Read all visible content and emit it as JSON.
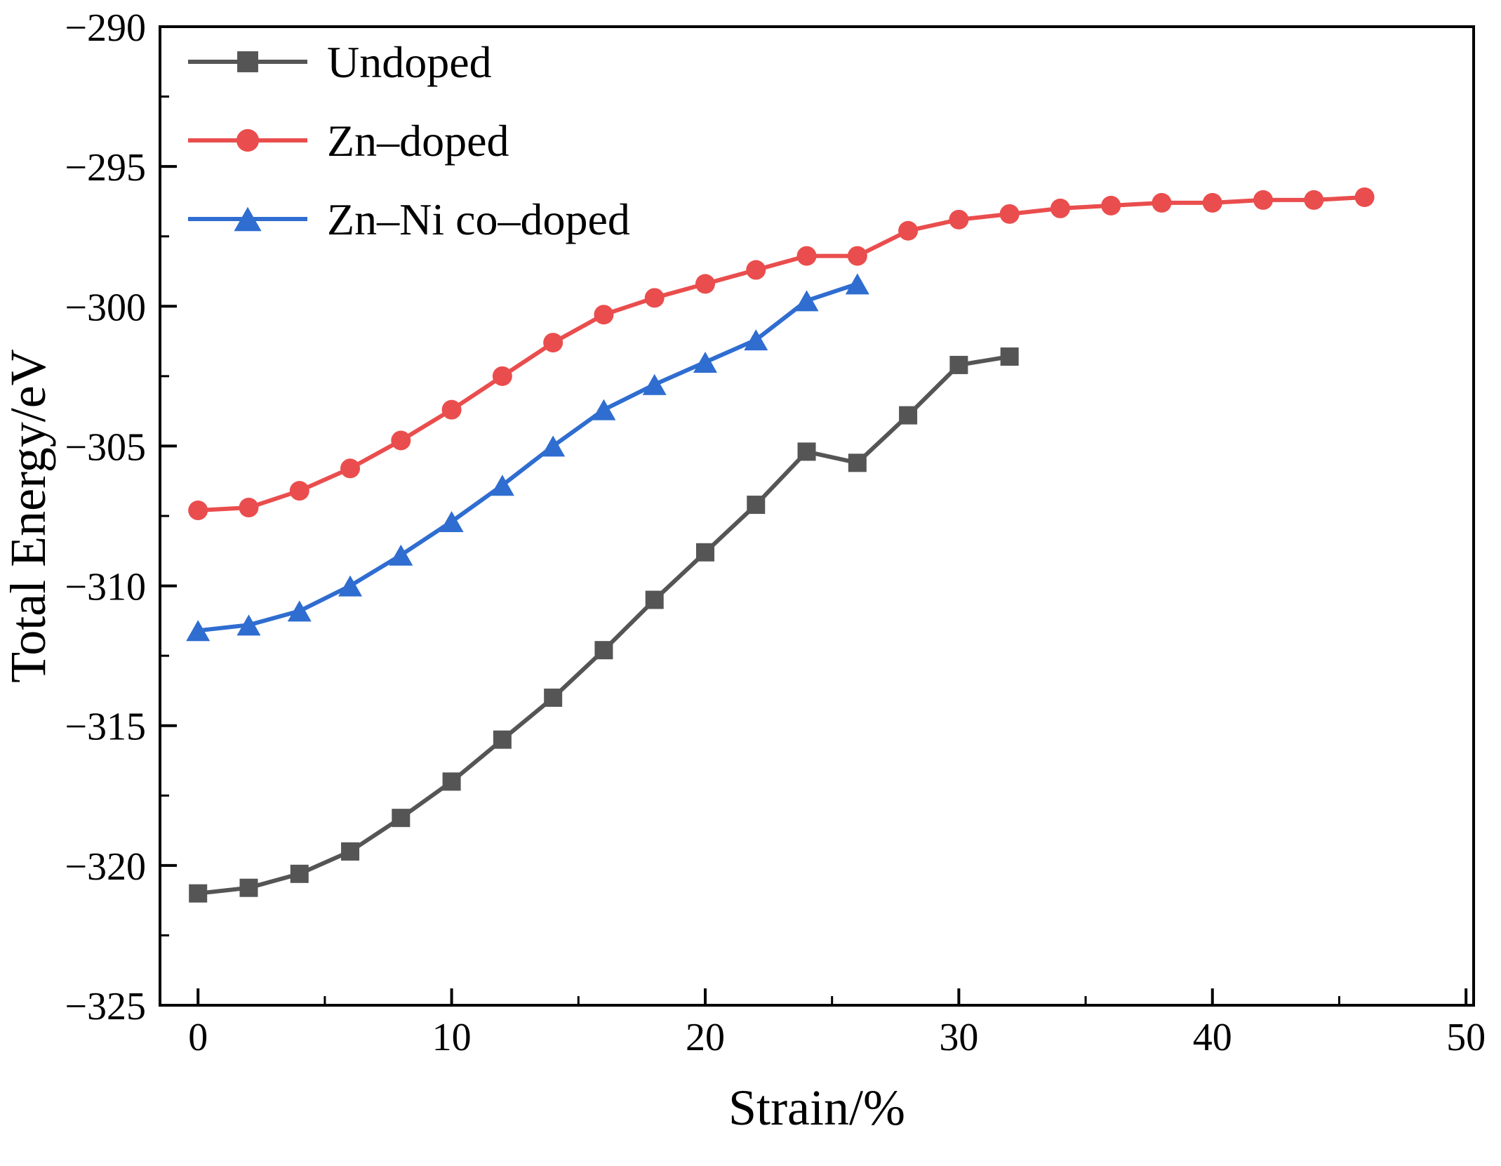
{
  "chart_data": {
    "type": "line",
    "title": "",
    "xlabel": "Strain/%",
    "ylabel": "Total Energy/eV",
    "xlim": [
      -1.5,
      50.3
    ],
    "ylim": [
      -325,
      -290
    ],
    "x_major_ticks": [
      0,
      10,
      20,
      30,
      40,
      50
    ],
    "x_minor_step": 5,
    "y_major_ticks": [
      -325,
      -320,
      -315,
      -310,
      -305,
      -300,
      -295,
      -290
    ],
    "y_minor_step": 2.5,
    "grid": false,
    "legend_position": "top-left",
    "axis_color": "#000000",
    "series": [
      {
        "name": "Undoped",
        "color": "#555555",
        "marker": "square",
        "x": [
          0,
          2,
          4,
          6,
          8,
          10,
          12,
          14,
          16,
          18,
          20,
          22,
          24,
          26,
          28,
          30,
          32
        ],
        "y": [
          -321.0,
          -320.8,
          -320.3,
          -319.5,
          -318.3,
          -317.0,
          -315.5,
          -314.0,
          -312.3,
          -310.5,
          -308.8,
          -307.1,
          -305.2,
          -305.6,
          -303.9,
          -302.1,
          -301.8
        ]
      },
      {
        "name": "Zn–doped",
        "color": "#ea4d4d",
        "marker": "circle",
        "x": [
          0,
          2,
          4,
          6,
          8,
          10,
          12,
          14,
          16,
          18,
          20,
          22,
          24,
          26,
          28,
          30,
          32,
          34,
          36,
          38,
          40,
          42,
          44,
          46
        ],
        "y": [
          -307.3,
          -307.2,
          -306.6,
          -305.8,
          -304.8,
          -303.7,
          -302.5,
          -301.3,
          -300.3,
          -299.7,
          -299.2,
          -298.7,
          -298.2,
          -298.2,
          -297.3,
          -296.9,
          -296.7,
          -296.5,
          -296.4,
          -296.3,
          -296.3,
          -296.2,
          -296.2,
          -296.1
        ]
      },
      {
        "name": "Zn–Ni co–doped",
        "color": "#2f6dd0",
        "marker": "triangle",
        "x": [
          0,
          2,
          4,
          6,
          8,
          10,
          12,
          14,
          16,
          18,
          20,
          22,
          24,
          26
        ],
        "y": [
          -311.6,
          -311.4,
          -310.9,
          -310.0,
          -308.9,
          -307.7,
          -306.4,
          -305.0,
          -303.7,
          -302.8,
          -302.0,
          -301.2,
          -299.8,
          -299.2
        ]
      }
    ]
  }
}
